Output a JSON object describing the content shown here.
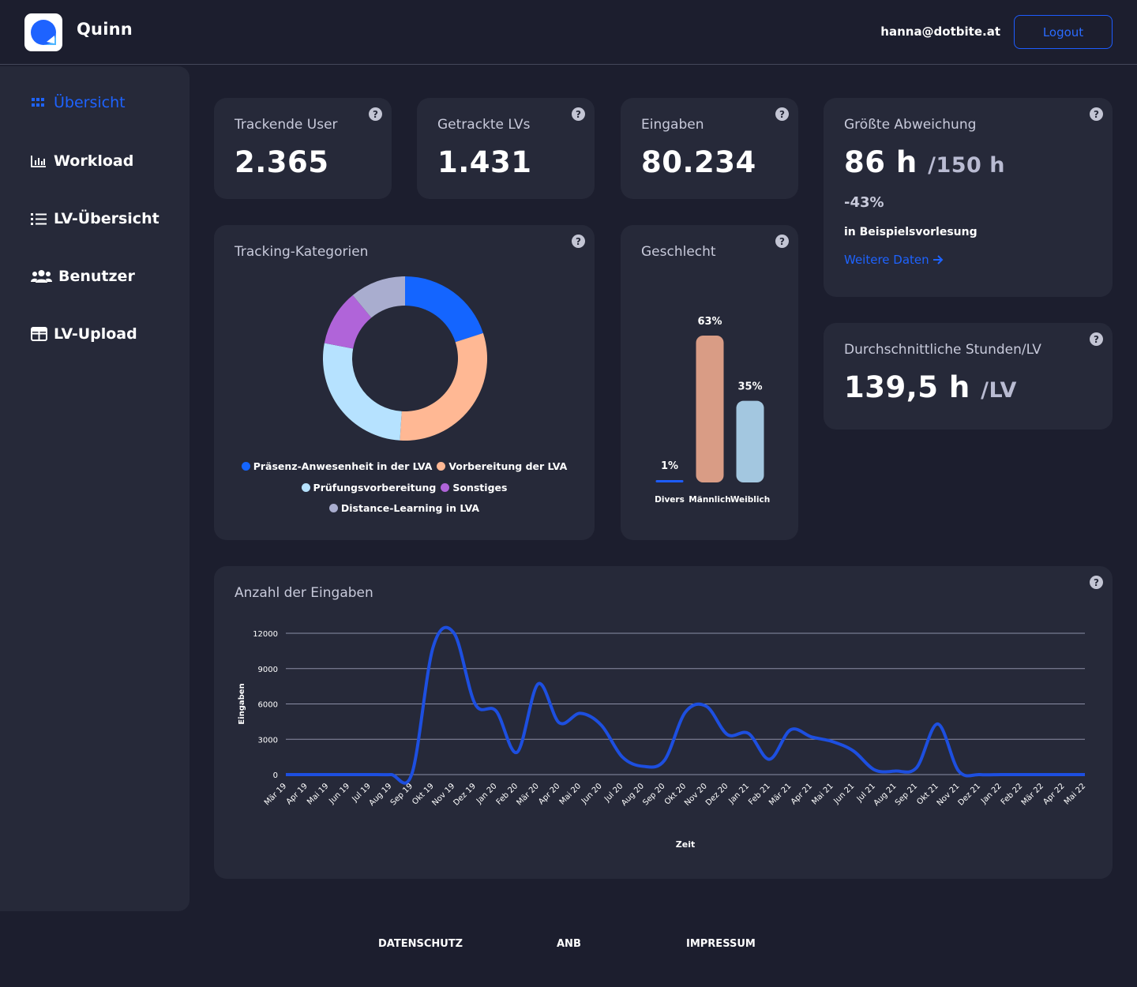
{
  "header": {
    "app_name": "Quinn",
    "user_email": "hanna@dotbite.at",
    "logout_label": "Logout"
  },
  "sidebar": {
    "items": [
      {
        "label": "Übersicht",
        "icon": "grid-icon",
        "active": true
      },
      {
        "label": "Workload",
        "icon": "bar-chart-icon",
        "active": false
      },
      {
        "label": "LV-Übersicht",
        "icon": "list-icon",
        "active": false
      },
      {
        "label": "Benutzer",
        "icon": "users-icon",
        "active": false
      },
      {
        "label": "LV-Upload",
        "icon": "table-icon",
        "active": false
      }
    ]
  },
  "stats": {
    "tracking_users": {
      "title": "Trackende User",
      "value": "2.365"
    },
    "tracked_lvs": {
      "title": "Getrackte LVs",
      "value": "1.431"
    },
    "entries": {
      "title": "Eingaben",
      "value": "80.234"
    },
    "largest_deviation": {
      "title": "Größte Abweichung",
      "value": "86 h",
      "unit": "/150 h",
      "percent": "-43%",
      "context": "in Beispielsvorlesung",
      "link": "Weitere Daten"
    },
    "avg_hours": {
      "title": "Durchschnittliche Stunden/LV",
      "value": "139,5 h",
      "unit": "/LV"
    }
  },
  "help_symbol": "?",
  "tracking_categories": {
    "title": "Tracking-Kategorien",
    "chart_data": {
      "type": "pie",
      "donut": true,
      "categories": [
        "Präsenz-Anwesenheit in der LVA",
        "Vorbereitung der LVA",
        "Prüfungsvorbereitung",
        "Sonstiges",
        "Distance-Learning in LVA"
      ],
      "values": [
        20,
        31,
        27,
        11,
        11
      ],
      "colors": [
        "#1465ff",
        "#ffb894",
        "#b6e2ff",
        "#b064d9",
        "#a9adcf"
      ]
    }
  },
  "gender": {
    "title": "Geschlecht",
    "chart_data": {
      "type": "bar",
      "categories": [
        "Divers",
        "Männlich",
        "Weiblich"
      ],
      "values": [
        1,
        63,
        35
      ],
      "labels": [
        "1%",
        "63%",
        "35%"
      ],
      "colors": [
        "#1d5cff",
        "#d99c85",
        "#a3c7e0"
      ]
    }
  },
  "entries_chart": {
    "title": "Anzahl der Eingaben",
    "chart_data": {
      "type": "line",
      "xlabel": "Zeit",
      "ylabel": "Eingaben",
      "ylim": [
        0,
        12000
      ],
      "yticks": [
        0,
        3000,
        6000,
        9000,
        12000
      ],
      "x": [
        "Mär 19",
        "Apr 19",
        "Mai 19",
        "Jun 19",
        "Jul 19",
        "Aug 19",
        "Sep 19",
        "Okt 19",
        "Nov 19",
        "Dez 19",
        "Jan 20",
        "Feb 20",
        "Mär 20",
        "Apr 20",
        "Mai 20",
        "Jun 20",
        "Jul 20",
        "Aug 20",
        "Sep 20",
        "Okt 20",
        "Nov 20",
        "Dez 20",
        "Jan 21",
        "Feb 21",
        "Mär 21",
        "Apr 21",
        "Mai 21",
        "Jun 21",
        "Jul 21",
        "Aug 21",
        "Sep 21",
        "Okt 21",
        "Nov 21",
        "Dez 21",
        "Jan 22",
        "Feb 22",
        "Mär 22",
        "Apr 22",
        "Mai 22"
      ],
      "series": [
        {
          "values": [
            0,
            0,
            0,
            0,
            0,
            0,
            100,
            10800,
            12000,
            6000,
            5400,
            1900,
            7700,
            4400,
            5200,
            4200,
            1500,
            700,
            1200,
            5300,
            5800,
            3400,
            3500,
            1300,
            3800,
            3200,
            2800,
            2000,
            400,
            300,
            600,
            4300,
            300,
            0,
            0,
            0,
            0,
            0,
            0
          ],
          "color": "#1d4fe0"
        }
      ],
      "grid": true
    }
  },
  "footer": {
    "links": [
      "DATENSCHUTZ",
      "ANB",
      "IMPRESSUM"
    ]
  }
}
